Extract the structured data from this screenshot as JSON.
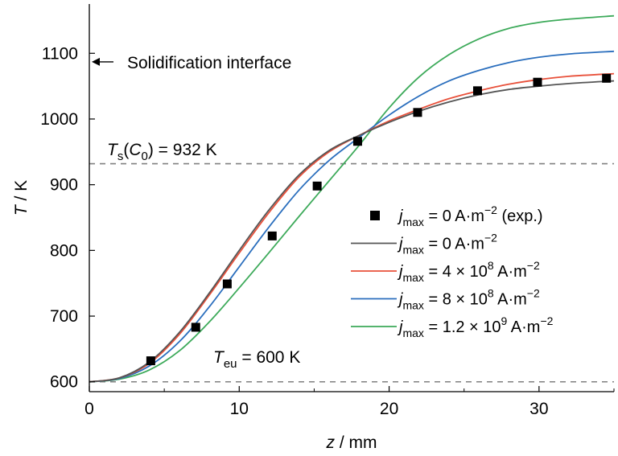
{
  "chart_data": {
    "type": "line",
    "xlabel": {
      "var": "z",
      "unit": " / mm"
    },
    "ylabel": {
      "var": "T",
      "unit": " / K"
    },
    "xlim": [
      0,
      35
    ],
    "ylim": [
      585,
      1175
    ],
    "x_ticks": [
      0,
      10,
      20,
      30
    ],
    "y_ticks": [
      600,
      700,
      800,
      900,
      1000,
      1100
    ],
    "grid": false,
    "legend_position": "center-right",
    "reference_lines": [
      {
        "y": 932,
        "style": "dashed",
        "color": "#808080"
      },
      {
        "y": 600,
        "style": "dashed",
        "color": "#808080"
      }
    ],
    "annotations": {
      "solidification": {
        "text": "Solidification interface",
        "y": 1087
      },
      "ts": {
        "sym": "T",
        "sub1": "s",
        "mid": "(C",
        "sub2": "0",
        "end": ") = 932 K"
      },
      "teu": {
        "sym": "T",
        "sub": "eu",
        "end": " = 600 K"
      }
    },
    "series": [
      {
        "name": {
          "j": "j",
          "sub": "max",
          "text": " = 0 A·m",
          "sup": "−2",
          "after": " (exp.)"
        },
        "kind": "marker",
        "color": "#000000",
        "x": [
          4.1,
          7.1,
          9.2,
          12.2,
          15.2,
          17.9,
          21.9,
          25.9,
          29.9,
          34.5
        ],
        "y": [
          632,
          683,
          749,
          822,
          898,
          966,
          1010,
          1043,
          1056,
          1062
        ]
      },
      {
        "name": {
          "j": "j",
          "sub": "max",
          "text": " = 0 A·m",
          "sup": "−2",
          "after": ""
        },
        "kind": "line",
        "color": "#555555",
        "x": [
          0,
          2,
          4,
          6,
          8,
          10,
          12,
          14,
          16,
          18,
          20,
          22,
          24,
          26,
          28,
          30,
          32,
          35
        ],
        "y": [
          600,
          606,
          630,
          675,
          735,
          800,
          862,
          915,
          952,
          975,
          995,
          1012,
          1026,
          1037,
          1045,
          1050,
          1054,
          1058
        ]
      },
      {
        "name": {
          "j": "j",
          "sub": "max",
          "text": " = 4 × 10",
          "sup": "8",
          "after": " A·m",
          "sup2": "−2"
        },
        "kind": "line",
        "color": "#e8503a",
        "x": [
          0,
          2,
          4,
          6,
          8,
          10,
          12,
          14,
          16,
          18,
          20,
          22,
          24,
          26,
          28,
          30,
          32,
          35
        ],
        "y": [
          600,
          606,
          628,
          672,
          732,
          796,
          858,
          912,
          950,
          975,
          997,
          1015,
          1031,
          1043,
          1053,
          1060,
          1065,
          1069
        ]
      },
      {
        "name": {
          "j": "j",
          "sub": "max",
          "text": " = 8 × 10",
          "sup": "8",
          "after": " A·m",
          "sup2": "−2"
        },
        "kind": "line",
        "color": "#2a6ebd",
        "x": [
          0,
          2,
          4,
          6,
          8,
          10,
          12,
          14,
          16,
          18,
          20,
          22,
          24,
          26,
          28,
          30,
          32,
          35
        ],
        "y": [
          600,
          605,
          624,
          661,
          714,
          775,
          836,
          892,
          937,
          972,
          1006,
          1035,
          1058,
          1074,
          1086,
          1094,
          1099,
          1103
        ]
      },
      {
        "name": {
          "j": "j",
          "sub": "max",
          "text": " = 1.2 × 10",
          "sup": "9",
          "after": " A·m",
          "sup2": "−2"
        },
        "kind": "line",
        "color": "#3daa5a",
        "x": [
          0,
          2,
          4,
          6,
          8,
          10,
          12,
          14,
          16,
          18,
          20,
          22,
          24,
          26,
          28,
          30,
          32,
          35
        ],
        "y": [
          600,
          604,
          618,
          647,
          691,
          743,
          797,
          852,
          906,
          960,
          1017,
          1064,
          1098,
          1122,
          1138,
          1147,
          1152,
          1157
        ]
      }
    ]
  }
}
